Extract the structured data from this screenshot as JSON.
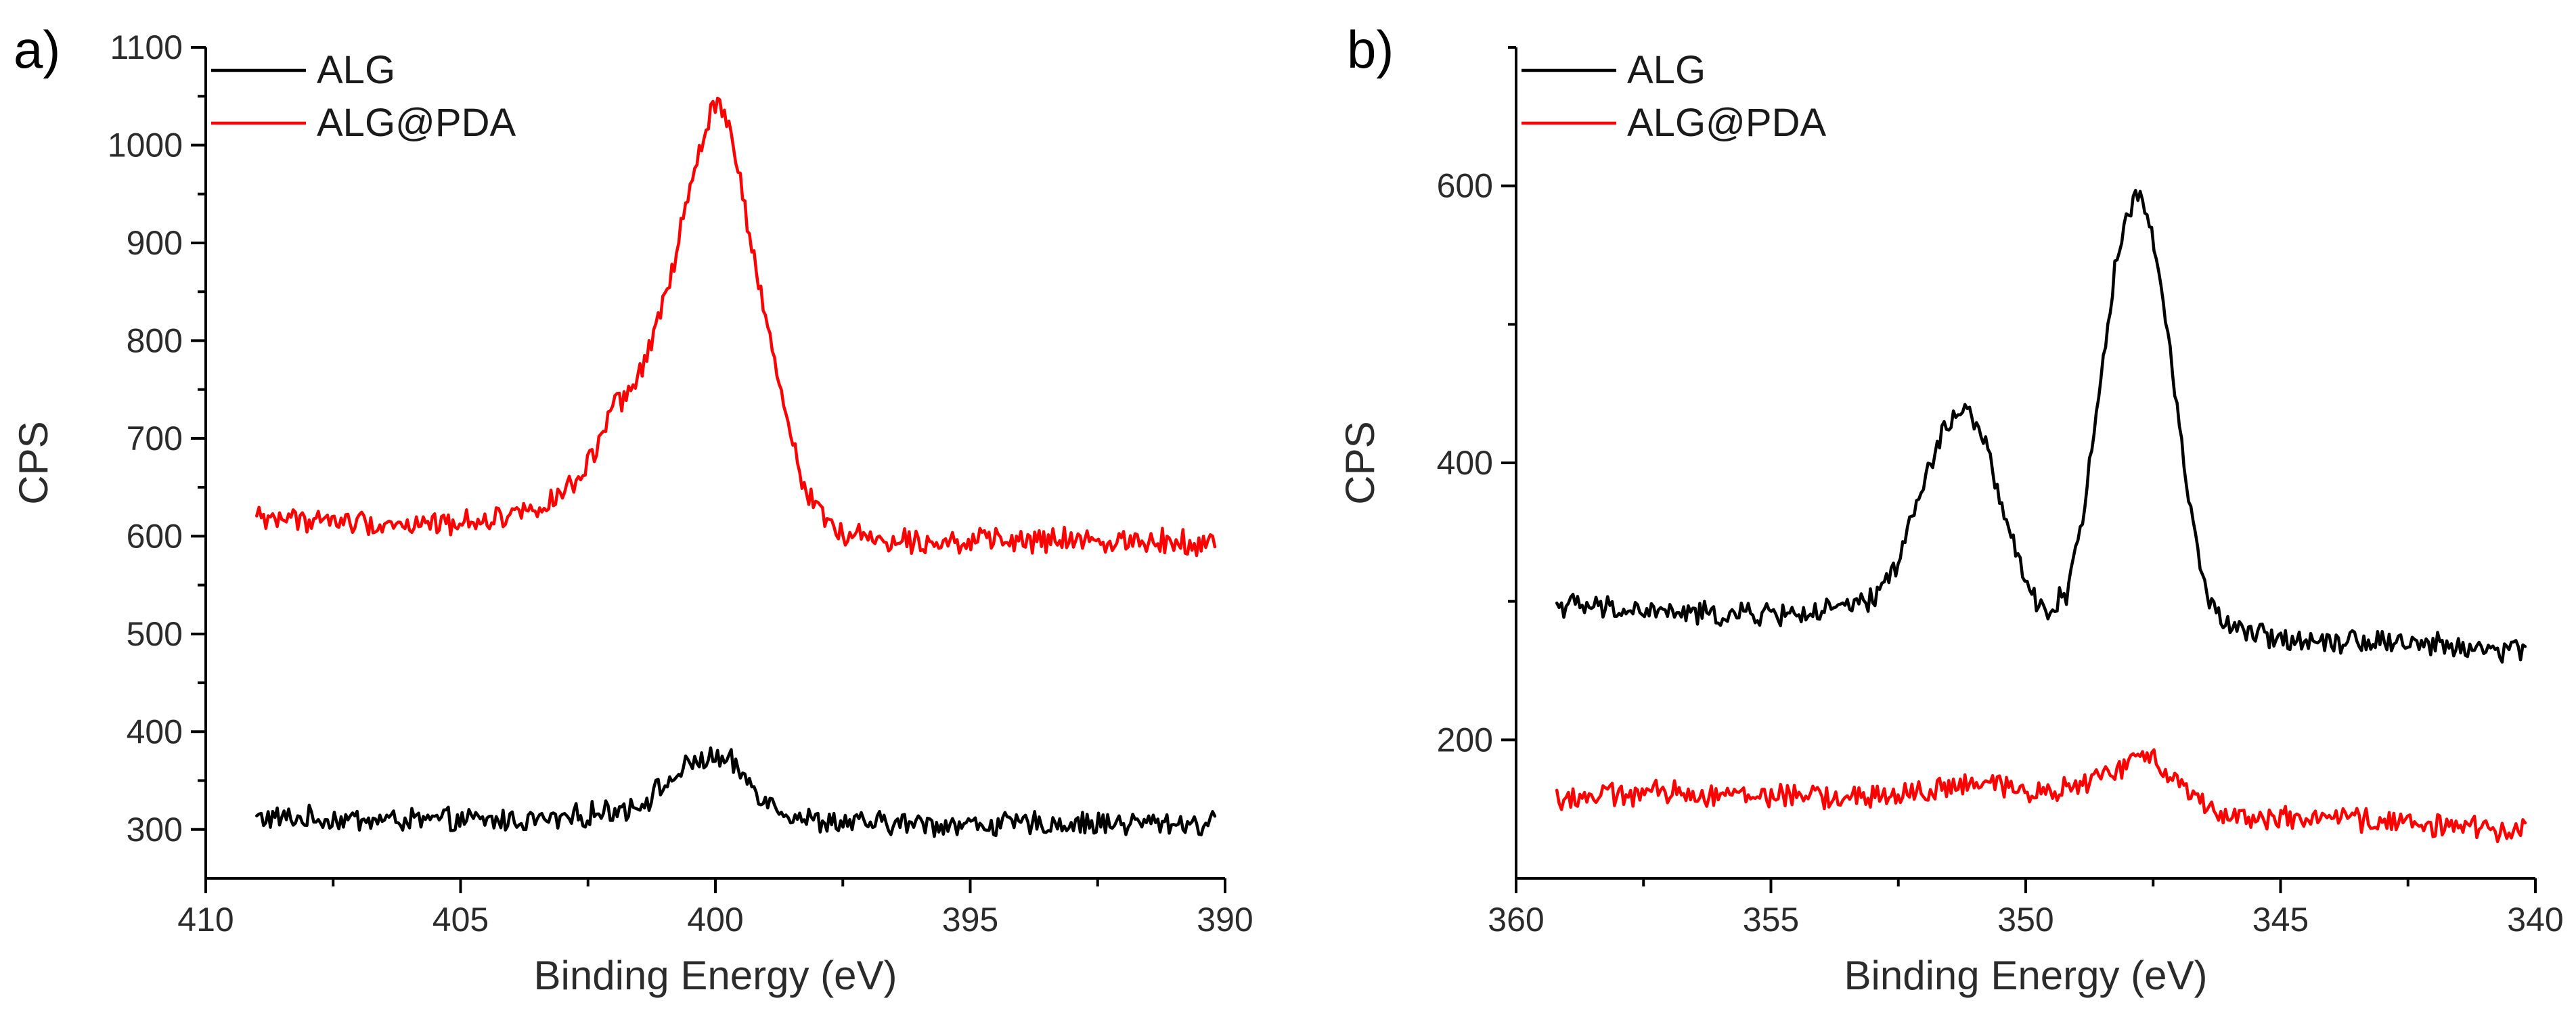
{
  "chart_data": [
    {
      "panel_label": "a)",
      "type": "line",
      "xlabel": "Binding Energy (eV)",
      "ylabel": "CPS",
      "xlim": [
        410,
        390
      ],
      "ylim": [
        250,
        1100
      ],
      "x_ticks": [
        410,
        405,
        400,
        395,
        390
      ],
      "y_ticks": [
        300,
        400,
        500,
        600,
        700,
        800,
        900,
        1000,
        1100
      ],
      "legend_position": "top-left",
      "series": [
        {
          "name": "ALG",
          "color": "#000000",
          "x": [
            409.0,
            407.0,
            405.0,
            403.0,
            401.5,
            401.0,
            400.6,
            400.3,
            400.0,
            399.7,
            399.4,
            399.0,
            398.5,
            398.0,
            397.0,
            396.0,
            395.0,
            393.0,
            391.0,
            390.2
          ],
          "y": [
            312,
            310,
            309,
            310,
            325,
            345,
            362,
            372,
            372,
            368,
            352,
            330,
            315,
            308,
            306,
            306,
            305,
            306,
            307,
            305
          ]
        },
        {
          "name": "ALG@PDA",
          "color": "#ff0000",
          "x": [
            409.0,
            407.0,
            406.0,
            405.0,
            404.0,
            403.0,
            402.6,
            402.3,
            402.0,
            401.5,
            401.2,
            400.9,
            400.6,
            400.3,
            400.1,
            400.0,
            399.8,
            399.5,
            399.2,
            398.9,
            398.6,
            398.3,
            398.0,
            397.6,
            397.0,
            396.0,
            395.0,
            393.0,
            391.0,
            390.2
          ],
          "y": [
            620,
            614,
            612,
            614,
            622,
            640,
            665,
            690,
            730,
            760,
            810,
            860,
            930,
            995,
            1030,
            1045,
            1030,
            960,
            870,
            790,
            720,
            660,
            628,
            605,
            598,
            596,
            595,
            595,
            596,
            592
          ]
        }
      ]
    },
    {
      "panel_label": "b)",
      "type": "line",
      "xlabel": "Binding Energy (eV)",
      "ylabel": "CPS",
      "xlim": [
        360,
        340
      ],
      "ylim": [
        100,
        700
      ],
      "x_ticks": [
        360,
        355,
        350,
        345,
        340
      ],
      "y_ticks": [
        200,
        400,
        600
      ],
      "legend_position": "top-left",
      "series": [
        {
          "name": "ALG",
          "color": "#000000",
          "x": [
            359.2,
            358.0,
            356.0,
            354.0,
            353.0,
            352.5,
            352.0,
            351.6,
            351.2,
            350.8,
            350.4,
            350.0,
            349.6,
            349.2,
            348.8,
            348.5,
            348.2,
            348.0,
            347.8,
            347.6,
            347.3,
            347.0,
            346.7,
            346.4,
            346.0,
            345.0,
            343.0,
            341.0,
            340.2
          ],
          "y": [
            298,
            294,
            290,
            292,
            300,
            330,
            385,
            425,
            440,
            415,
            360,
            310,
            292,
            305,
            380,
            470,
            550,
            585,
            590,
            580,
            520,
            430,
            350,
            300,
            280,
            273,
            272,
            265,
            266
          ]
        },
        {
          "name": "ALG@PDA",
          "color": "#ff0000",
          "x": [
            359.2,
            357.0,
            355.0,
            353.0,
            351.0,
            350.0,
            349.0,
            348.5,
            348.0,
            347.6,
            347.2,
            346.8,
            346.4,
            346.0,
            345.0,
            343.0,
            341.0,
            340.2
          ],
          "y": [
            158,
            162,
            160,
            158,
            168,
            164,
            165,
            175,
            182,
            188,
            178,
            165,
            150,
            146,
            143,
            142,
            135,
            138
          ]
        }
      ]
    }
  ]
}
